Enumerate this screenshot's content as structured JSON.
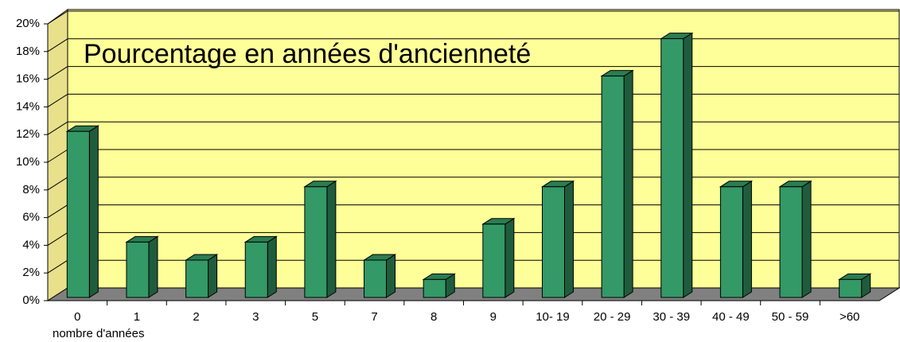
{
  "chart_data": {
    "type": "bar",
    "title": "Pourcentage en années d'ancienneté",
    "x_label": "nombre d'années",
    "categories": [
      "0",
      "1",
      "2",
      "3",
      "5",
      "7",
      "8",
      "9",
      "10- 19",
      "20 - 29",
      "30 - 39",
      "40 - 49",
      "50 - 59",
      ">60"
    ],
    "values": [
      12,
      4,
      2.7,
      4,
      8,
      2.7,
      1.3,
      5.3,
      8,
      16,
      18.7,
      8,
      8,
      1.3
    ],
    "color": "#339966",
    "ylim": [
      0,
      20
    ],
    "yticks": [
      {
        "value": 0,
        "label": "0%"
      },
      {
        "value": 2,
        "label": "2%"
      },
      {
        "value": 4,
        "label": "4%"
      },
      {
        "value": 6,
        "label": "6%"
      },
      {
        "value": 8,
        "label": "8%"
      },
      {
        "value": 10,
        "label": "10%"
      },
      {
        "value": 12,
        "label": "12%"
      },
      {
        "value": 14,
        "label": "14%"
      },
      {
        "value": 16,
        "label": "16%"
      },
      {
        "value": 18,
        "label": "18%"
      },
      {
        "value": 20,
        "label": "20%"
      }
    ],
    "grid": true
  }
}
